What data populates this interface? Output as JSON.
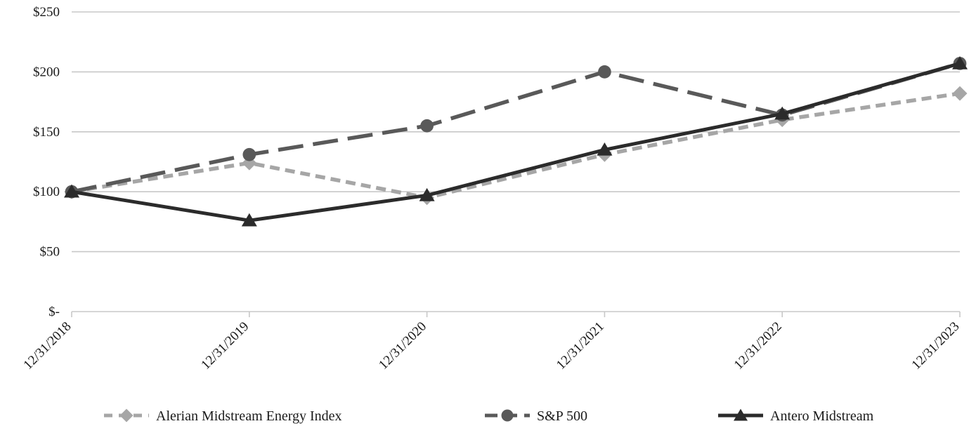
{
  "chart_data": {
    "type": "line",
    "x": [
      "12/31/2018",
      "12/31/2019",
      "12/31/2020",
      "12/31/2021",
      "12/31/2022",
      "12/31/2023"
    ],
    "y_ticks": [
      0,
      50,
      100,
      150,
      200,
      250
    ],
    "y_tick_labels": [
      "$-",
      "$50",
      "$100",
      "$150",
      "$200",
      "$250"
    ],
    "ylim": [
      0,
      250
    ],
    "grid": "horizontal",
    "legend_position": "bottom",
    "series": [
      {
        "name": "Alerian Midstream Energy Index",
        "values": [
          100,
          124,
          95,
          131,
          160,
          182
        ],
        "color": "#a6a6a6",
        "line_style": "short-dash",
        "marker": "diamond"
      },
      {
        "name": "S&P 500",
        "values": [
          100,
          131,
          155,
          200,
          164,
          207
        ],
        "color": "#595959",
        "line_style": "long-dash",
        "marker": "circle"
      },
      {
        "name": "Antero Midstream",
        "values": [
          100,
          76,
          97,
          135,
          165,
          207
        ],
        "color": "#2b2b2b",
        "line_style": "solid",
        "marker": "triangle"
      }
    ]
  }
}
